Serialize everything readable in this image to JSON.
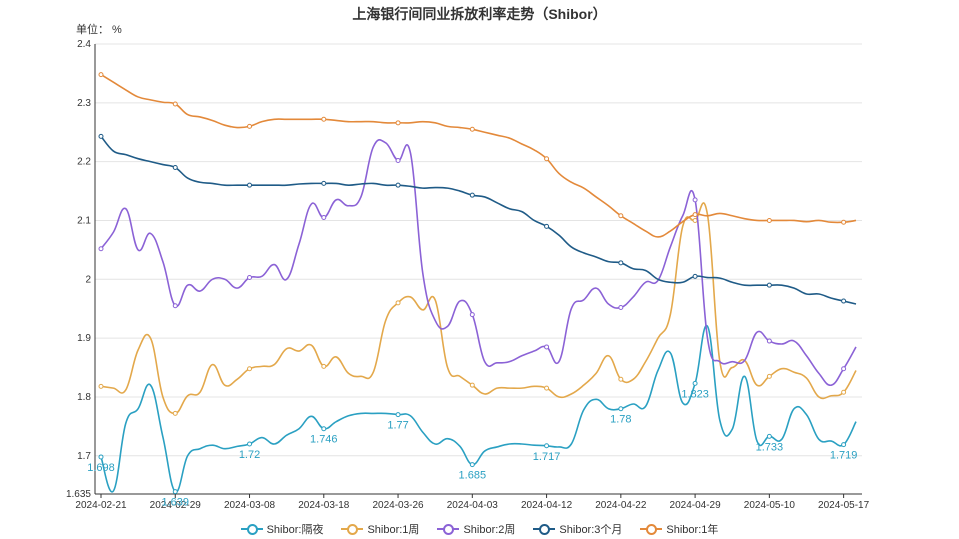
{
  "chart_data": {
    "type": "line",
    "title": "上海银行间同业拆放利率走势（Shibor）",
    "unit_label": "单位： %",
    "ylim": [
      1.635,
      2.4
    ],
    "y_ticks": [
      "1.635",
      "1.7",
      "1.8",
      "1.9",
      "2",
      "2.1",
      "2.2",
      "2.3",
      "2.4"
    ],
    "x": [
      "2024-02-21",
      "2024-02-22",
      "2024-02-23",
      "2024-02-26",
      "2024-02-27",
      "2024-02-28",
      "2024-02-29",
      "2024-03-01",
      "2024-03-04",
      "2024-03-05",
      "2024-03-06",
      "2024-03-07",
      "2024-03-08",
      "2024-03-11",
      "2024-03-12",
      "2024-03-13",
      "2024-03-14",
      "2024-03-15",
      "2024-03-18",
      "2024-03-19",
      "2024-03-20",
      "2024-03-21",
      "2024-03-22",
      "2024-03-25",
      "2024-03-26",
      "2024-03-27",
      "2024-03-28",
      "2024-03-29",
      "2024-04-01",
      "2024-04-02",
      "2024-04-03",
      "2024-04-07",
      "2024-04-08",
      "2024-04-09",
      "2024-04-10",
      "2024-04-11",
      "2024-04-12",
      "2024-04-15",
      "2024-04-16",
      "2024-04-17",
      "2024-04-18",
      "2024-04-19",
      "2024-04-22",
      "2024-04-23",
      "2024-04-24",
      "2024-04-25",
      "2024-04-26",
      "2024-04-28",
      "2024-04-29",
      "2024-04-30",
      "2024-05-06",
      "2024-05-07",
      "2024-05-08",
      "2024-05-09",
      "2024-05-10",
      "2024-05-11",
      "2024-05-13",
      "2024-05-14",
      "2024-05-15",
      "2024-05-16",
      "2024-05-17",
      "2024-05-20"
    ],
    "x_tick_labels": [
      "2024-02-21",
      "2024-02-29",
      "2024-03-08",
      "2024-03-18",
      "2024-03-26",
      "2024-04-03",
      "2024-04-12",
      "2024-04-22",
      "2024-04-29",
      "2024-05-10",
      "2024-05-17"
    ],
    "x_tick_indices": [
      0,
      6,
      12,
      18,
      24,
      30,
      36,
      42,
      48,
      54,
      60
    ],
    "series": [
      {
        "name": "Shibor:隔夜",
        "color": "#2aa0c2",
        "values": [
          1.698,
          1.64,
          1.755,
          1.78,
          1.82,
          1.732,
          1.639,
          1.7,
          1.712,
          1.718,
          1.712,
          1.716,
          1.72,
          1.731,
          1.72,
          1.735,
          1.746,
          1.767,
          1.746,
          1.758,
          1.768,
          1.772,
          1.772,
          1.772,
          1.77,
          1.768,
          1.74,
          1.72,
          1.729,
          1.716,
          1.685,
          1.708,
          1.715,
          1.72,
          1.72,
          1.718,
          1.717,
          1.715,
          1.72,
          1.778,
          1.796,
          1.78,
          1.78,
          1.788,
          1.784,
          1.845,
          1.875,
          1.79,
          1.823,
          1.92,
          1.76,
          1.745,
          1.835,
          1.725,
          1.733,
          1.728,
          1.78,
          1.77,
          1.728,
          1.725,
          1.719,
          1.758
        ],
        "labels": {
          "0": "1.698",
          "6": "1.639",
          "12": "1.72",
          "18": "1.746",
          "24": "1.77",
          "30": "1.685",
          "36": "1.717",
          "42": "1.78",
          "48": "1.823",
          "54": "1.733",
          "60": "1.719"
        }
      },
      {
        "name": "Shibor:1周",
        "color": "#e3a84b",
        "values": [
          1.818,
          1.815,
          1.812,
          1.88,
          1.9,
          1.8,
          1.772,
          1.802,
          1.808,
          1.855,
          1.82,
          1.83,
          1.848,
          1.852,
          1.855,
          1.882,
          1.878,
          1.888,
          1.852,
          1.868,
          1.84,
          1.835,
          1.842,
          1.93,
          1.96,
          1.97,
          1.948,
          1.965,
          1.85,
          1.835,
          1.82,
          1.805,
          1.815,
          1.815,
          1.815,
          1.818,
          1.815,
          1.8,
          1.805,
          1.82,
          1.84,
          1.87,
          1.83,
          1.83,
          1.86,
          1.9,
          1.94,
          2.09,
          2.1,
          2.11,
          1.86,
          1.85,
          1.862,
          1.82,
          1.835,
          1.848,
          1.842,
          1.832,
          1.8,
          1.802,
          1.808,
          1.845
        ],
        "labels": {}
      },
      {
        "name": "Shibor:2周",
        "color": "#8b62d6",
        "values": [
          2.052,
          2.08,
          2.12,
          2.05,
          2.078,
          2.03,
          1.955,
          1.99,
          1.98,
          2.0,
          2.0,
          1.985,
          2.003,
          2.005,
          2.025,
          2.0,
          2.06,
          2.128,
          2.105,
          2.135,
          2.125,
          2.14,
          2.225,
          2.232,
          2.202,
          2.215,
          2.01,
          1.93,
          1.92,
          1.963,
          1.94,
          1.86,
          1.858,
          1.86,
          1.87,
          1.878,
          1.885,
          1.86,
          1.95,
          1.965,
          1.985,
          1.958,
          1.952,
          1.97,
          1.995,
          1.998,
          2.055,
          2.108,
          2.135,
          1.9,
          1.86,
          1.86,
          1.862,
          1.91,
          1.895,
          1.89,
          1.895,
          1.87,
          1.84,
          1.82,
          1.848,
          1.885
        ],
        "labels": {}
      },
      {
        "name": "Shibor:3个月",
        "color": "#1f5b87",
        "values": [
          2.243,
          2.218,
          2.212,
          2.205,
          2.2,
          2.195,
          2.19,
          2.172,
          2.165,
          2.163,
          2.16,
          2.16,
          2.16,
          2.16,
          2.16,
          2.16,
          2.162,
          2.163,
          2.163,
          2.163,
          2.16,
          2.162,
          2.163,
          2.16,
          2.16,
          2.158,
          2.155,
          2.156,
          2.155,
          2.15,
          2.143,
          2.14,
          2.13,
          2.12,
          2.115,
          2.1,
          2.09,
          2.075,
          2.055,
          2.045,
          2.038,
          2.03,
          2.028,
          2.018,
          2.015,
          2.0,
          1.995,
          1.995,
          2.005,
          2.003,
          2.002,
          1.995,
          1.99,
          1.99,
          1.99,
          1.99,
          1.985,
          1.975,
          1.975,
          1.968,
          1.963,
          1.958
        ],
        "labels": {}
      },
      {
        "name": "Shibor:1年",
        "color": "#e3893a",
        "values": [
          2.348,
          2.335,
          2.322,
          2.31,
          2.305,
          2.301,
          2.298,
          2.28,
          2.276,
          2.27,
          2.262,
          2.258,
          2.26,
          2.268,
          2.272,
          2.272,
          2.272,
          2.272,
          2.272,
          2.27,
          2.268,
          2.268,
          2.268,
          2.266,
          2.266,
          2.266,
          2.268,
          2.266,
          2.26,
          2.258,
          2.255,
          2.25,
          2.245,
          2.24,
          2.23,
          2.22,
          2.205,
          2.18,
          2.165,
          2.155,
          2.14,
          2.125,
          2.108,
          2.095,
          2.082,
          2.072,
          2.082,
          2.098,
          2.11,
          2.108,
          2.112,
          2.108,
          2.103,
          2.1,
          2.1,
          2.1,
          2.1,
          2.098,
          2.1,
          2.097,
          2.097,
          2.1
        ],
        "labels": {}
      }
    ],
    "grid": true,
    "legend_position": "bottom"
  }
}
